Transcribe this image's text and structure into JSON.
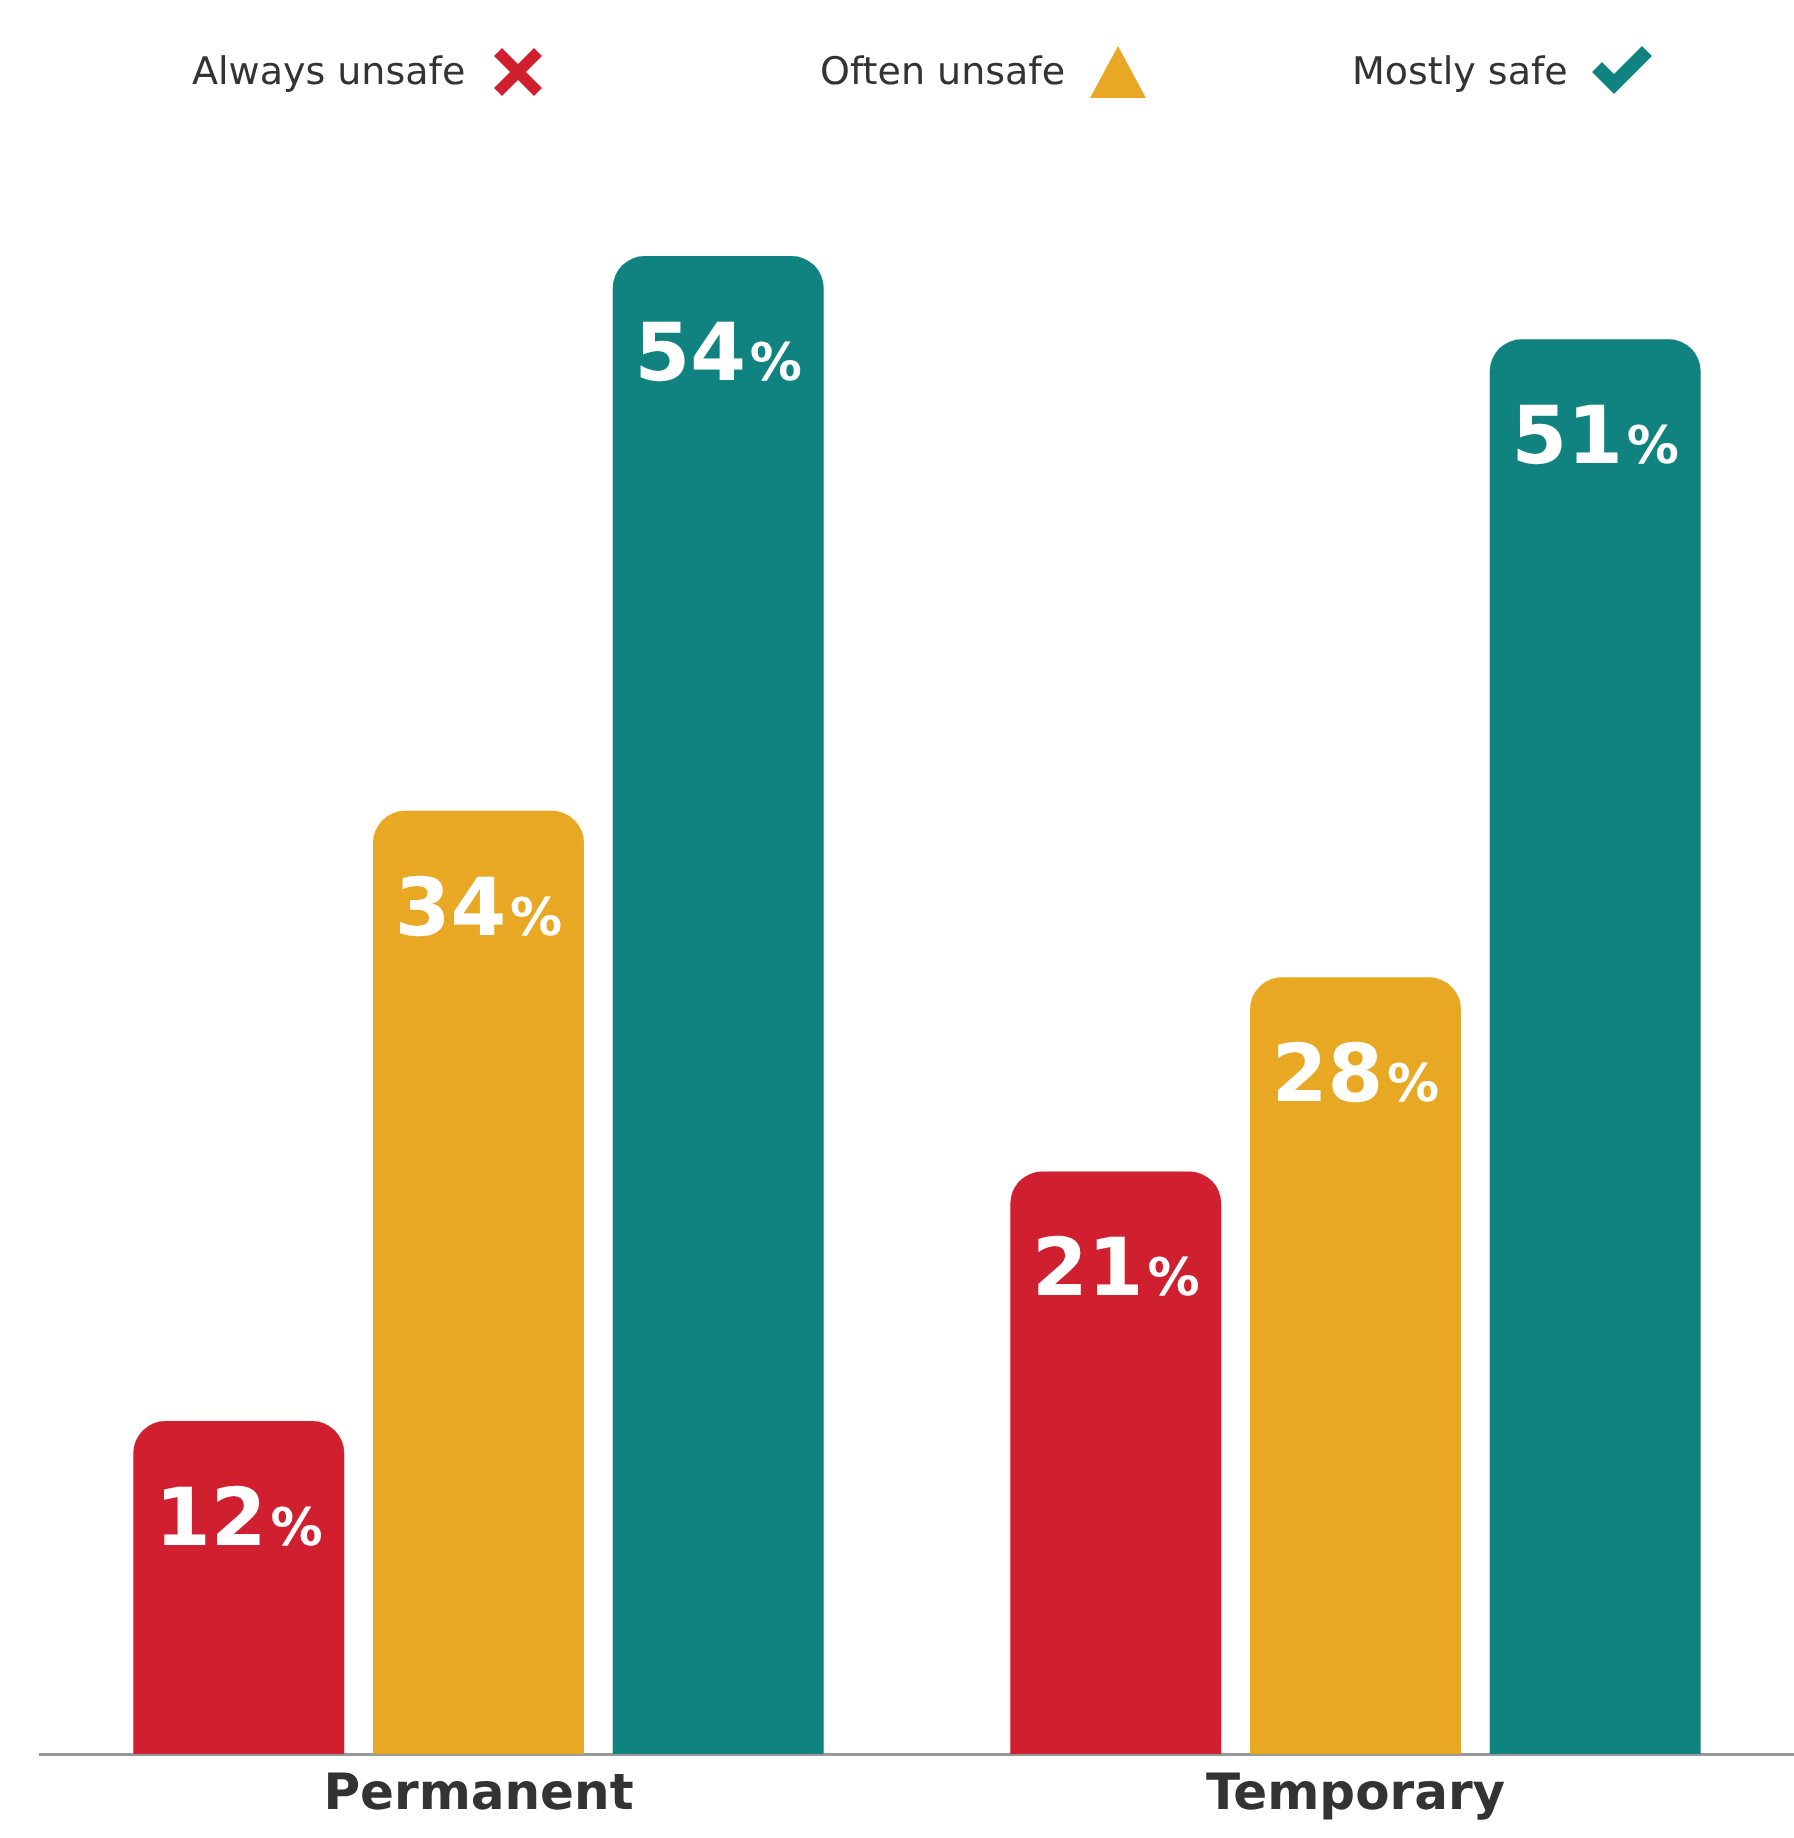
{
  "chart_data": {
    "type": "bar",
    "categories": [
      "Permanent",
      "Temporary"
    ],
    "series": [
      {
        "name": "Always unsafe",
        "color": "#d0202f",
        "values": [
          12,
          21
        ],
        "value_labels": [
          "12%",
          "21%"
        ]
      },
      {
        "name": "Often unsafe",
        "color": "#e9a823",
        "values": [
          34,
          28
        ],
        "value_labels": [
          "34%",
          "28%"
        ]
      },
      {
        "name": "Mostly safe",
        "color": "#10827f",
        "values": [
          54,
          51
        ],
        "value_labels": [
          "54%",
          "51%"
        ]
      }
    ],
    "ylim": [
      0,
      54
    ],
    "tick_labels": "x",
    "grid": false,
    "legend": "top"
  }
}
